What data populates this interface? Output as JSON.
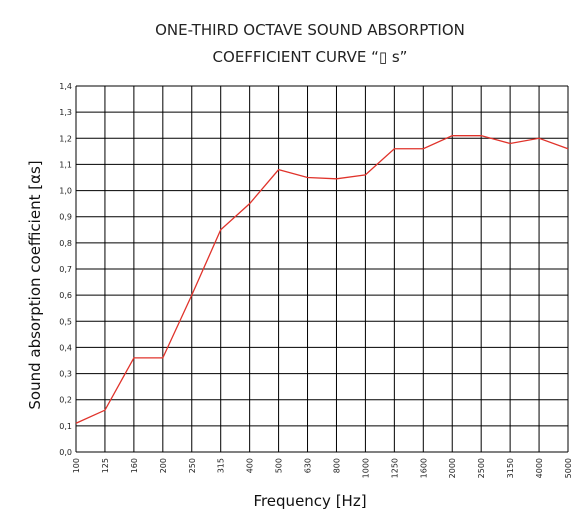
{
  "chart_data": {
    "type": "line",
    "title_line1": "ONE-THIRD OCTAVE SOUND ABSORPTION",
    "title_line2": "COEFFICIENT CURVE “▯ s”",
    "xlabel": "Frequency [Hz]",
    "ylabel": "Sound absorption coefficient [αs]",
    "x": [
      "100",
      "125",
      "160",
      "200",
      "250",
      "315",
      "400",
      "500",
      "630",
      "800",
      "1000",
      "1250",
      "1600",
      "2000",
      "2500",
      "3150",
      "4000",
      "5000"
    ],
    "y_ticks": [
      "0,0",
      "0,1",
      "0,2",
      "0,3",
      "0,4",
      "0,5",
      "0,6",
      "0,7",
      "0,8",
      "0,9",
      "1,0",
      "1,1",
      "1,2",
      "1,3",
      "1,4"
    ],
    "ylim": [
      0,
      1.4
    ],
    "grid": true,
    "series": [
      {
        "values": [
          0.11,
          0.16,
          0.36,
          0.36,
          0.6,
          0.85,
          0.95,
          1.08,
          1.05,
          1.045,
          1.06,
          1.16,
          1.16,
          1.21,
          1.21,
          1.18,
          1.2,
          1.16
        ],
        "color": "#e0332b"
      }
    ]
  }
}
